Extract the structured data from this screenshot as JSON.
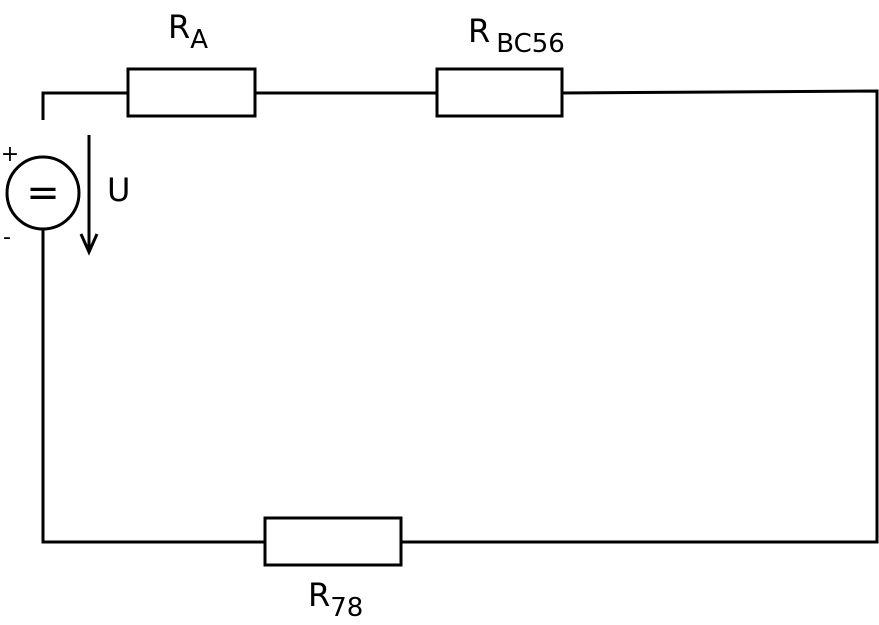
{
  "components": {
    "source": {
      "symbol": "=",
      "plus": "+",
      "minus": "-",
      "voltage_label": "U"
    },
    "resistor_a": {
      "main": "R",
      "sub": "A"
    },
    "resistor_bc56": {
      "main": "R",
      "sub": "BC56"
    },
    "resistor_78": {
      "main": "R",
      "sub": "78"
    }
  },
  "colors": {
    "line": "#000000",
    "background": "#ffffff"
  }
}
